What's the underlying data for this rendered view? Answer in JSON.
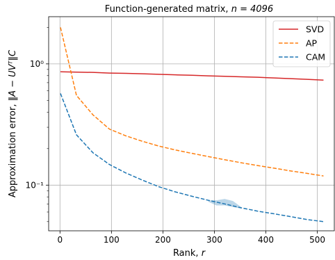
{
  "chart_data": {
    "type": "line",
    "title_prefix": "Function-generated matrix, ",
    "title_math": "n = 4096",
    "xlabel_text": "Rank, ",
    "xlabel_math": "r",
    "ylabel_text": "Approximation error, ",
    "ylabel_math": "‖A − UVᵀ‖C",
    "xlim": [
      -22,
      533
    ],
    "ylim": [
      0.042,
      2.45
    ],
    "yscale": "log",
    "grid": true,
    "legend_position": "top-right",
    "x_ticks": [
      0,
      100,
      200,
      300,
      400,
      500
    ],
    "y_ticks": [
      {
        "value": 0.1,
        "label": "10⁻¹"
      },
      {
        "value": 1,
        "label": "10⁰"
      }
    ],
    "series": [
      {
        "name": "SVD",
        "color": "#d62728",
        "dash": "solid",
        "x": [
          1,
          32,
          64,
          96,
          128,
          160,
          192,
          224,
          256,
          288,
          320,
          352,
          384,
          416,
          448,
          480,
          512
        ],
        "y": [
          0.86,
          0.855,
          0.85,
          0.84,
          0.835,
          0.828,
          0.82,
          0.812,
          0.805,
          0.797,
          0.79,
          0.782,
          0.775,
          0.765,
          0.755,
          0.745,
          0.735
        ]
      },
      {
        "name": "AP",
        "color": "#ff7f0e",
        "dash": "dashed",
        "x": [
          1,
          32,
          64,
          96,
          128,
          160,
          192,
          224,
          256,
          288,
          320,
          352,
          384,
          416,
          448,
          480,
          512
        ],
        "y": [
          2.0,
          0.55,
          0.38,
          0.29,
          0.255,
          0.23,
          0.21,
          0.195,
          0.183,
          0.172,
          0.162,
          0.153,
          0.145,
          0.138,
          0.131,
          0.125,
          0.119
        ]
      },
      {
        "name": "CAM",
        "color": "#1f77b4",
        "dash": "dashed",
        "x": [
          1,
          32,
          64,
          96,
          128,
          160,
          192,
          224,
          256,
          288,
          320,
          352,
          384,
          416,
          448,
          480,
          512
        ],
        "y": [
          0.57,
          0.26,
          0.185,
          0.148,
          0.126,
          0.11,
          0.097,
          0.088,
          0.081,
          0.075,
          0.07,
          0.065,
          0.061,
          0.058,
          0.055,
          0.052,
          0.05
        ]
      }
    ],
    "band": {
      "series": "CAM",
      "color": "#1f77b4",
      "opacity": 0.3,
      "x": [
        288,
        304,
        320,
        336,
        352
      ],
      "lower": [
        0.073,
        0.068,
        0.068,
        0.066,
        0.064
      ],
      "upper": [
        0.075,
        0.075,
        0.077,
        0.074,
        0.066
      ]
    }
  }
}
